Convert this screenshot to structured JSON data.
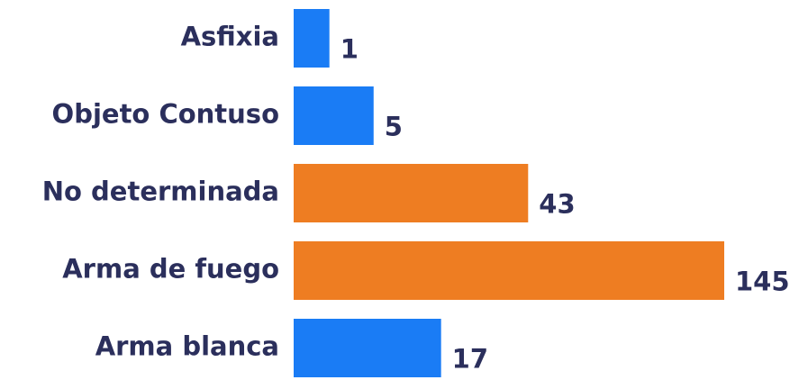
{
  "chart_data": {
    "type": "hbar",
    "categories": [
      "Asfixia",
      "Objeto Contuso",
      "No determinada",
      "Arma de fuego",
      "Arma blanca"
    ],
    "values": [
      1,
      5,
      43,
      145,
      17
    ],
    "colors": [
      "#1a7cf5",
      "#1a7cf5",
      "#ee7d22",
      "#ee7d22",
      "#1a7cf5"
    ],
    "scale": "sqrt"
  }
}
